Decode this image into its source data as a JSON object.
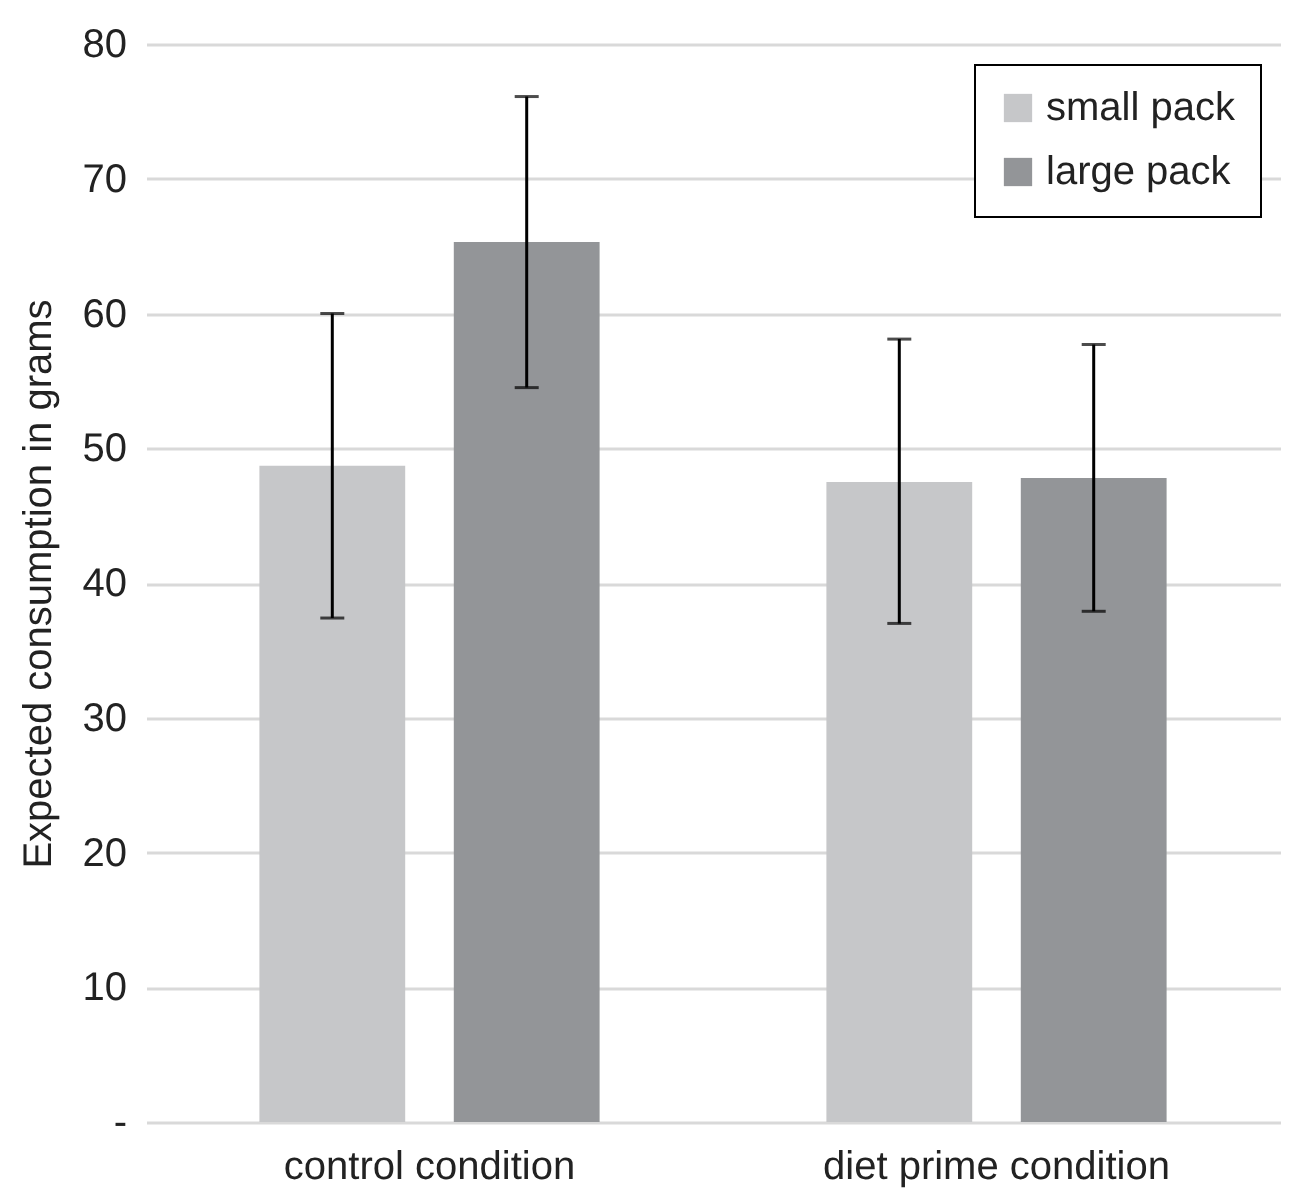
{
  "chart_data": {
    "type": "bar",
    "ylabel": "Expected consumption in grams",
    "categories": [
      "control condition",
      "diet prime condition"
    ],
    "series": [
      {
        "name": "small pack",
        "color": "#c6c7c9",
        "values": [
          48.7,
          47.5
        ],
        "errors": [
          [
            37.4,
            60.0
          ],
          [
            37.0,
            58.1
          ]
        ]
      },
      {
        "name": "large pack",
        "color": "#939598",
        "values": [
          65.3,
          47.8
        ],
        "errors": [
          [
            54.5,
            76.1
          ],
          [
            37.9,
            57.7
          ]
        ]
      }
    ],
    "ylim": [
      0,
      80
    ],
    "yticks": [
      {
        "value": 0,
        "label": "-"
      },
      10,
      20,
      30,
      40,
      50,
      60,
      70,
      80
    ],
    "grid": "y",
    "legend": "top right"
  }
}
